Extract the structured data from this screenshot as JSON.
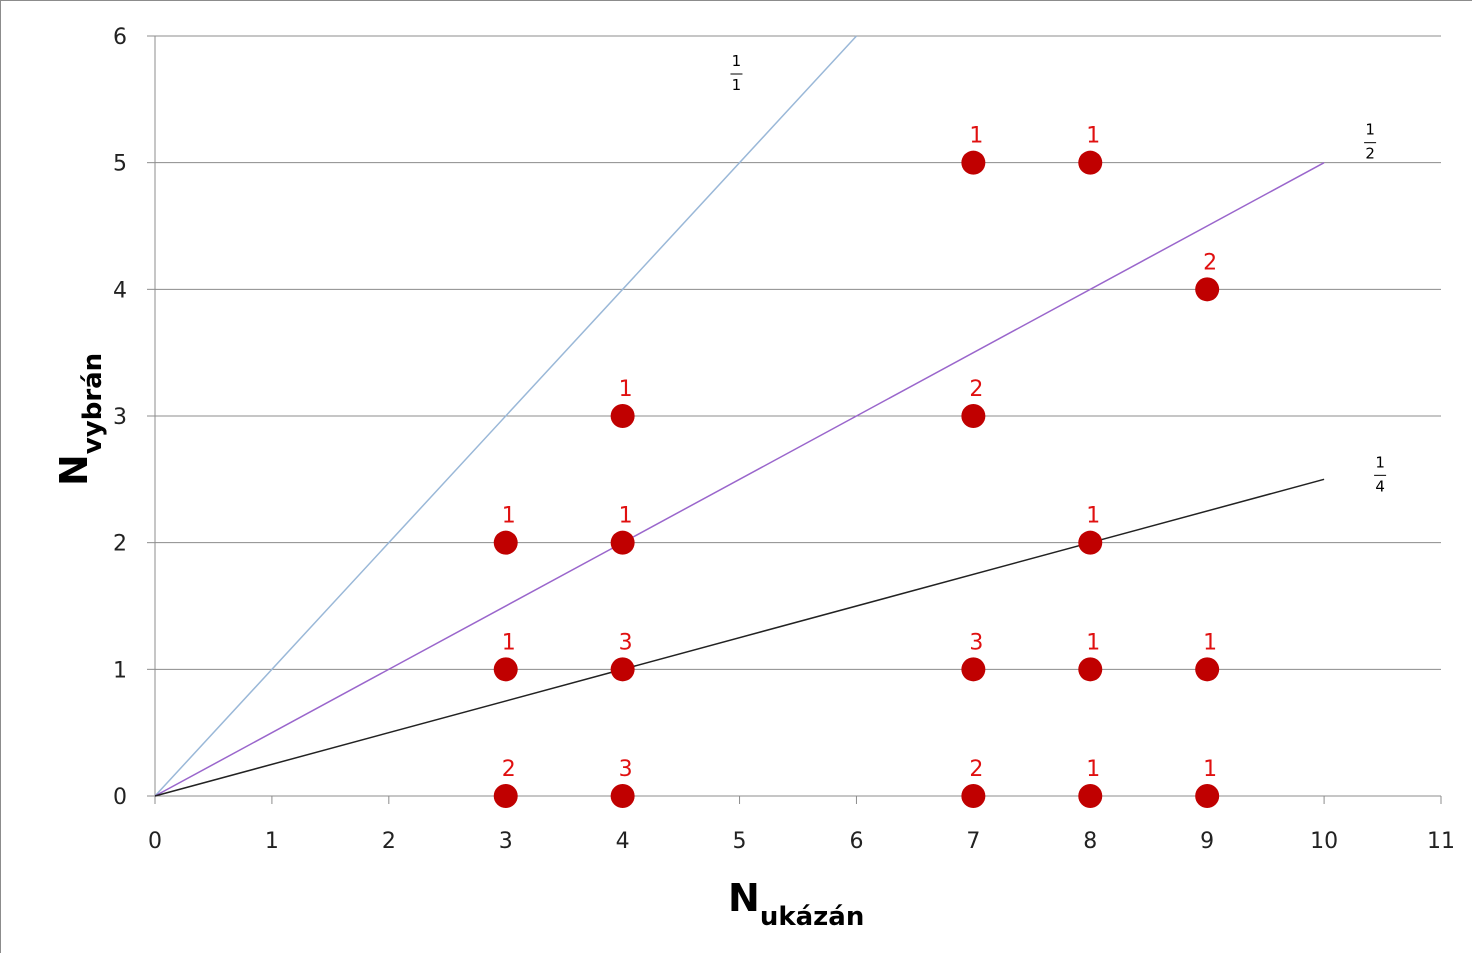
{
  "chart_data": {
    "type": "scatter",
    "xlabel": {
      "main": "N",
      "sub": "ukázán"
    },
    "ylabel": {
      "main": "N",
      "sub": "vybrán"
    },
    "xlim": [
      0,
      11
    ],
    "ylim": [
      0,
      6
    ],
    "x_ticks": [
      "0",
      "1",
      "2",
      "3",
      "4",
      "5",
      "6",
      "7",
      "8",
      "9",
      "10",
      "11"
    ],
    "y_ticks": [
      "0",
      "1",
      "2",
      "3",
      "4",
      "5",
      "6"
    ],
    "grid": "horizontal",
    "point_color": "#c00000",
    "label_color": "#e01010",
    "points": [
      {
        "x": 3,
        "y": 0,
        "label": "2"
      },
      {
        "x": 3,
        "y": 1,
        "label": "1"
      },
      {
        "x": 3,
        "y": 2,
        "label": "1"
      },
      {
        "x": 4,
        "y": 0,
        "label": "3"
      },
      {
        "x": 4,
        "y": 1,
        "label": "3"
      },
      {
        "x": 4,
        "y": 2,
        "label": "1"
      },
      {
        "x": 4,
        "y": 3,
        "label": "1"
      },
      {
        "x": 7,
        "y": 0,
        "label": "2"
      },
      {
        "x": 7,
        "y": 1,
        "label": "3"
      },
      {
        "x": 7,
        "y": 3,
        "label": "2"
      },
      {
        "x": 7,
        "y": 5,
        "label": "1"
      },
      {
        "x": 8,
        "y": 0,
        "label": "1"
      },
      {
        "x": 8,
        "y": 1,
        "label": "1"
      },
      {
        "x": 8,
        "y": 2,
        "label": "1"
      },
      {
        "x": 8,
        "y": 5,
        "label": "1"
      },
      {
        "x": 9,
        "y": 0,
        "label": "1"
      },
      {
        "x": 9,
        "y": 1,
        "label": "1"
      },
      {
        "x": 9,
        "y": 4,
        "label": "2"
      }
    ],
    "reference_lines": [
      {
        "num": "1",
        "den": "1",
        "slope": 1,
        "x_end": 6,
        "color": "#9ab8d8"
      },
      {
        "num": "1",
        "den": "2",
        "slope": 0.5,
        "x_end": 10,
        "color": "#9a66cc"
      },
      {
        "num": "1",
        "den": "4",
        "slope": 0.25,
        "x_end": 10,
        "color": "#222222"
      }
    ]
  }
}
